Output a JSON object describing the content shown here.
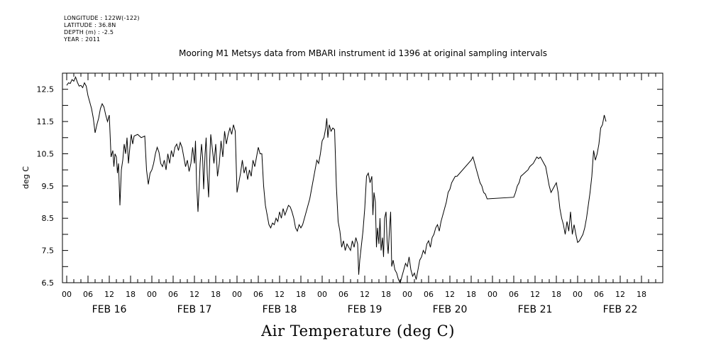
{
  "metadata_lines": [
    "LONGITUDE : 122W(-122)",
    "LATITUDE : 36.8N",
    "DEPTH (m) : -2.5",
    "YEAR : 2011"
  ],
  "chart_data": {
    "type": "line",
    "title": "Mooring M1 Metsys data from MBARI instrument id 1396 at original sampling intervals",
    "xlabel": "Air Temperature (deg C)",
    "ylabel": "deg C",
    "ylim": [
      6.5,
      13.0
    ],
    "yticks": [
      "6.5",
      "7.5",
      "8.5",
      "9.5",
      "10.5",
      "11.5",
      "12.5"
    ],
    "x_unit": "hours since FEB 16 00:00",
    "xlim": [
      0,
      168
    ],
    "hour_labels": [
      "00",
      "06",
      "12",
      "18"
    ],
    "day_labels": [
      "FEB 16",
      "FEB 17",
      "FEB 18",
      "FEB 19",
      "FEB 20",
      "FEB 21",
      "FEB 22"
    ],
    "grid": false,
    "series": [
      {
        "values": [
          [
            0,
            12.62
          ],
          [
            0.5,
            12.7
          ],
          [
            1,
            12.68
          ],
          [
            1.5,
            12.8
          ],
          [
            2,
            12.75
          ],
          [
            2.5,
            12.88
          ],
          [
            3,
            12.72
          ],
          [
            3.5,
            12.6
          ],
          [
            4,
            12.62
          ],
          [
            4.5,
            12.55
          ],
          [
            5,
            12.7
          ],
          [
            5.5,
            12.6
          ],
          [
            6,
            12.3
          ],
          [
            6.5,
            12.1
          ],
          [
            7,
            11.9
          ],
          [
            7.5,
            11.6
          ],
          [
            8,
            11.15
          ],
          [
            8.5,
            11.4
          ],
          [
            9,
            11.6
          ],
          [
            9.5,
            11.9
          ],
          [
            10,
            12.05
          ],
          [
            10.5,
            11.95
          ],
          [
            11,
            11.7
          ],
          [
            11.5,
            11.5
          ],
          [
            12,
            11.7
          ],
          [
            12.5,
            10.4
          ],
          [
            13,
            10.6
          ],
          [
            13.3,
            10.1
          ],
          [
            13.6,
            10.5
          ],
          [
            14,
            10.4
          ],
          [
            14.3,
            9.9
          ],
          [
            14.6,
            10.2
          ],
          [
            15,
            8.9
          ],
          [
            15.4,
            10.0
          ],
          [
            15.8,
            10.3
          ],
          [
            16.2,
            10.8
          ],
          [
            16.6,
            10.5
          ],
          [
            17,
            11.0
          ],
          [
            17.4,
            10.2
          ],
          [
            17.8,
            10.7
          ],
          [
            18.2,
            11.1
          ],
          [
            18.6,
            10.8
          ],
          [
            19,
            11.05
          ],
          [
            20,
            11.1
          ],
          [
            21,
            11.0
          ],
          [
            22,
            11.05
          ],
          [
            22.5,
            10.0
          ],
          [
            23,
            9.55
          ],
          [
            23.5,
            9.9
          ],
          [
            24,
            10.0
          ],
          [
            24.5,
            10.2
          ],
          [
            25,
            10.5
          ],
          [
            25.5,
            10.7
          ],
          [
            26,
            10.55
          ],
          [
            26.5,
            10.2
          ],
          [
            27,
            10.1
          ],
          [
            27.5,
            10.3
          ],
          [
            28,
            10.0
          ],
          [
            28.5,
            10.5
          ],
          [
            29,
            10.2
          ],
          [
            29.5,
            10.6
          ],
          [
            30,
            10.4
          ],
          [
            30.5,
            10.7
          ],
          [
            31,
            10.8
          ],
          [
            31.5,
            10.6
          ],
          [
            32,
            10.85
          ],
          [
            32.5,
            10.7
          ],
          [
            33,
            10.4
          ],
          [
            33.5,
            10.1
          ],
          [
            34,
            10.3
          ],
          [
            34.5,
            9.95
          ],
          [
            35,
            10.2
          ],
          [
            35.5,
            10.7
          ],
          [
            36,
            10.2
          ],
          [
            36.3,
            10.9
          ],
          [
            36.6,
            9.6
          ],
          [
            37,
            8.7
          ],
          [
            37.3,
            9.4
          ],
          [
            37.6,
            10.2
          ],
          [
            38,
            10.8
          ],
          [
            38.3,
            10.4
          ],
          [
            38.6,
            9.4
          ],
          [
            39,
            10.5
          ],
          [
            39.3,
            11.0
          ],
          [
            39.6,
            9.9
          ],
          [
            40,
            9.15
          ],
          [
            40.3,
            10.3
          ],
          [
            40.6,
            11.1
          ],
          [
            41,
            10.7
          ],
          [
            41.5,
            10.2
          ],
          [
            42,
            10.8
          ],
          [
            42.5,
            9.8
          ],
          [
            43,
            10.2
          ],
          [
            43.5,
            10.9
          ],
          [
            44,
            10.4
          ],
          [
            44.5,
            11.2
          ],
          [
            45,
            10.8
          ],
          [
            45.5,
            11.1
          ],
          [
            46,
            11.3
          ],
          [
            46.5,
            11.1
          ],
          [
            47,
            11.4
          ],
          [
            47.5,
            11.2
          ],
          [
            48,
            9.3
          ],
          [
            48.5,
            9.6
          ],
          [
            49,
            9.9
          ],
          [
            49.5,
            10.3
          ],
          [
            50,
            9.9
          ],
          [
            50.5,
            10.1
          ],
          [
            51,
            9.7
          ],
          [
            51.5,
            10.0
          ],
          [
            52,
            9.8
          ],
          [
            52.5,
            10.3
          ],
          [
            53,
            10.1
          ],
          [
            53.5,
            10.4
          ],
          [
            54,
            10.7
          ],
          [
            54.5,
            10.5
          ],
          [
            55,
            10.5
          ],
          [
            55.5,
            9.5
          ],
          [
            56,
            8.9
          ],
          [
            56.5,
            8.6
          ],
          [
            57,
            8.3
          ],
          [
            57.5,
            8.2
          ],
          [
            58,
            8.35
          ],
          [
            58.5,
            8.3
          ],
          [
            59,
            8.5
          ],
          [
            59.5,
            8.4
          ],
          [
            60,
            8.7
          ],
          [
            60.5,
            8.5
          ],
          [
            61,
            8.8
          ],
          [
            61.5,
            8.6
          ],
          [
            62,
            8.75
          ],
          [
            62.5,
            8.9
          ],
          [
            63,
            8.85
          ],
          [
            63.5,
            8.7
          ],
          [
            64,
            8.5
          ],
          [
            64.5,
            8.2
          ],
          [
            65,
            8.1
          ],
          [
            65.5,
            8.3
          ],
          [
            66,
            8.2
          ],
          [
            66.5,
            8.3
          ],
          [
            67,
            8.5
          ],
          [
            67.5,
            8.7
          ],
          [
            68,
            8.9
          ],
          [
            68.5,
            9.1
          ],
          [
            69,
            9.4
          ],
          [
            69.5,
            9.7
          ],
          [
            70,
            10.0
          ],
          [
            70.5,
            10.3
          ],
          [
            71,
            10.2
          ],
          [
            71.5,
            10.5
          ],
          [
            72,
            10.9
          ],
          [
            72.5,
            11.0
          ],
          [
            73,
            11.3
          ],
          [
            73.3,
            11.6
          ],
          [
            73.6,
            11.0
          ],
          [
            74,
            11.4
          ],
          [
            74.5,
            11.2
          ],
          [
            75,
            11.3
          ],
          [
            75.5,
            11.25
          ],
          [
            76,
            9.5
          ],
          [
            76.5,
            8.4
          ],
          [
            77,
            8.1
          ],
          [
            77.5,
            7.6
          ],
          [
            78,
            7.8
          ],
          [
            78.5,
            7.5
          ],
          [
            79,
            7.7
          ],
          [
            79.5,
            7.6
          ],
          [
            80,
            7.5
          ],
          [
            80.5,
            7.8
          ],
          [
            81,
            7.6
          ],
          [
            81.5,
            7.9
          ],
          [
            82,
            7.7
          ],
          [
            82.3,
            6.75
          ],
          [
            82.6,
            7.2
          ],
          [
            83,
            7.6
          ],
          [
            83.5,
            8.1
          ],
          [
            84,
            8.8
          ],
          [
            84.5,
            9.8
          ],
          [
            85,
            9.9
          ],
          [
            85.5,
            9.6
          ],
          [
            86,
            9.8
          ],
          [
            86.3,
            8.6
          ],
          [
            86.6,
            9.3
          ],
          [
            87,
            9.0
          ],
          [
            87.3,
            7.6
          ],
          [
            87.6,
            8.2
          ],
          [
            88,
            7.7
          ],
          [
            88.3,
            8.5
          ],
          [
            88.6,
            7.5
          ],
          [
            89,
            7.9
          ],
          [
            89.3,
            7.3
          ],
          [
            89.6,
            8.5
          ],
          [
            90,
            8.7
          ],
          [
            90.3,
            7.8
          ],
          [
            90.6,
            7.4
          ],
          [
            91,
            8.2
          ],
          [
            91.3,
            8.7
          ],
          [
            91.6,
            7.0
          ],
          [
            92,
            7.2
          ],
          [
            92.5,
            6.9
          ],
          [
            93,
            6.8
          ],
          [
            93.5,
            6.6
          ],
          [
            94,
            6.5
          ],
          [
            94.5,
            6.7
          ],
          [
            95,
            6.9
          ],
          [
            95.5,
            7.1
          ],
          [
            96,
            7.0
          ],
          [
            96.5,
            7.3
          ],
          [
            97,
            6.9
          ],
          [
            97.5,
            6.7
          ],
          [
            98,
            6.8
          ],
          [
            98.5,
            6.6
          ],
          [
            99,
            6.9
          ],
          [
            99.5,
            7.2
          ],
          [
            100,
            7.3
          ],
          [
            100.5,
            7.5
          ],
          [
            101,
            7.4
          ],
          [
            101.5,
            7.7
          ],
          [
            102,
            7.8
          ],
          [
            102.5,
            7.6
          ],
          [
            103,
            7.9
          ],
          [
            103.5,
            8.0
          ],
          [
            104,
            8.2
          ],
          [
            104.5,
            8.3
          ],
          [
            105,
            8.1
          ],
          [
            105.5,
            8.4
          ],
          [
            106,
            8.6
          ],
          [
            106.5,
            8.8
          ],
          [
            107,
            9.0
          ],
          [
            107.5,
            9.3
          ],
          [
            108,
            9.4
          ],
          [
            108.5,
            9.6
          ],
          [
            109,
            9.7
          ],
          [
            109.5,
            9.8
          ],
          [
            110,
            9.8
          ],
          [
            114,
            10.3
          ],
          [
            114.5,
            10.4
          ],
          [
            115,
            10.2
          ],
          [
            115.5,
            10.0
          ],
          [
            116,
            9.8
          ],
          [
            116.5,
            9.6
          ],
          [
            117,
            9.5
          ],
          [
            117.5,
            9.3
          ],
          [
            118,
            9.25
          ],
          [
            118.5,
            9.1
          ],
          [
            126,
            9.15
          ],
          [
            126.5,
            9.3
          ],
          [
            127,
            9.5
          ],
          [
            127.5,
            9.6
          ],
          [
            128,
            9.8
          ],
          [
            128.5,
            9.85
          ],
          [
            129,
            9.9
          ],
          [
            129.5,
            9.95
          ],
          [
            130,
            10.0
          ],
          [
            130.5,
            10.1
          ],
          [
            131,
            10.15
          ],
          [
            131.5,
            10.2
          ],
          [
            132,
            10.3
          ],
          [
            132.5,
            10.4
          ],
          [
            133,
            10.35
          ],
          [
            133.5,
            10.4
          ],
          [
            134,
            10.3
          ],
          [
            134.5,
            10.2
          ],
          [
            135,
            10.1
          ],
          [
            135.5,
            9.8
          ],
          [
            136,
            9.5
          ],
          [
            136.5,
            9.3
          ],
          [
            137,
            9.4
          ],
          [
            137.5,
            9.5
          ],
          [
            138,
            9.6
          ],
          [
            138.5,
            9.3
          ],
          [
            139,
            8.8
          ],
          [
            139.5,
            8.5
          ],
          [
            140,
            8.3
          ],
          [
            140.5,
            8.0
          ],
          [
            141,
            8.4
          ],
          [
            141.5,
            8.1
          ],
          [
            142,
            8.7
          ],
          [
            142.5,
            8.0
          ],
          [
            143,
            8.3
          ],
          [
            143.5,
            8.0
          ],
          [
            144,
            7.75
          ],
          [
            144.5,
            7.8
          ],
          [
            145,
            7.9
          ],
          [
            145.5,
            8.0
          ],
          [
            146,
            8.2
          ],
          [
            146.5,
            8.5
          ],
          [
            147,
            8.9
          ],
          [
            147.5,
            9.3
          ],
          [
            148,
            9.8
          ],
          [
            148.5,
            10.6
          ],
          [
            149,
            10.3
          ],
          [
            149.5,
            10.5
          ],
          [
            150,
            10.8
          ],
          [
            150.5,
            11.3
          ],
          [
            151,
            11.4
          ],
          [
            151.5,
            11.7
          ],
          [
            152,
            11.5
          ]
        ]
      }
    ]
  }
}
